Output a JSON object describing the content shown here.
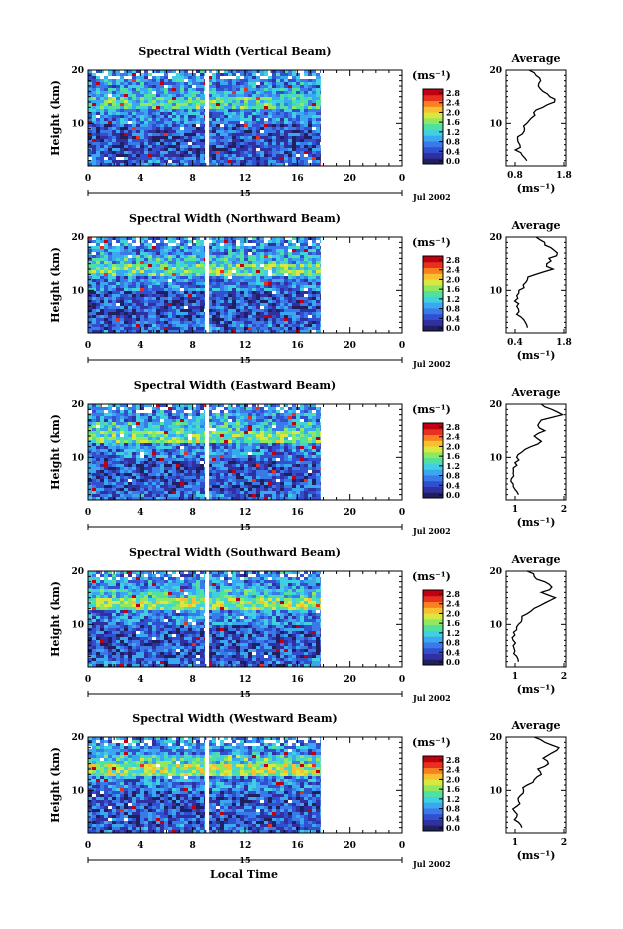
{
  "figure": {
    "x_axis_label": "Local Time",
    "date_label": "Jul 2002",
    "day_label": "15",
    "profile_title": "Average",
    "colorbar_unit": "(ms⁻¹)",
    "profile_xlabel": "(ms⁻¹)"
  },
  "colorbar": {
    "ticks": [
      "2.8",
      "2.4",
      "2.0",
      "1.6",
      "1.2",
      "0.8",
      "0.4",
      "0.0"
    ],
    "colors": [
      "#202060",
      "#3030a0",
      "#3050d0",
      "#3a7ae8",
      "#3aa8f0",
      "#40d0e0",
      "#50e0a0",
      "#90e860",
      "#d8e840",
      "#f8c030",
      "#f88020",
      "#e83020",
      "#c00010"
    ]
  },
  "chart_data": [
    {
      "type": "heatmap",
      "title": "Spectral Width (Vertical Beam)",
      "ylabel": "Height (km)",
      "xlim": [
        0,
        24
      ],
      "ylim": [
        2,
        20
      ],
      "x_ticks": [
        "0",
        "4",
        "8",
        "12",
        "16",
        "20",
        "0"
      ],
      "y_ticks": [
        "10",
        "20"
      ],
      "data_end_hour": 17.8,
      "gap_hour": 9.1,
      "profile": {
        "xlim": [
          0.5,
          1.8
        ],
        "x_ticks": [
          "0.8",
          "1.8"
        ],
        "height": [
          3,
          4,
          5,
          6,
          7,
          8,
          9,
          10,
          11,
          12,
          13,
          14,
          15,
          16,
          17,
          18,
          19,
          20
        ],
        "values": [
          0.95,
          0.85,
          0.7,
          0.8,
          0.75,
          0.85,
          0.9,
          0.95,
          1.05,
          1.1,
          1.3,
          1.55,
          1.45,
          1.3,
          1.2,
          1.25,
          1.15,
          1.0
        ]
      }
    },
    {
      "type": "heatmap",
      "title": "Spectral Width (Northward Beam)",
      "ylabel": "Height (km)",
      "xlim": [
        0,
        24
      ],
      "ylim": [
        2,
        20
      ],
      "x_ticks": [
        "0",
        "4",
        "8",
        "12",
        "16",
        "20",
        "0"
      ],
      "y_ticks": [
        "10",
        "20"
      ],
      "data_end_hour": 17.8,
      "gap_hour": 9.1,
      "profile": {
        "xlim": [
          0.4,
          1.8
        ],
        "x_ticks": [
          "0.4",
          "1.8"
        ],
        "height": [
          3,
          4,
          5,
          6,
          7,
          8,
          9,
          10,
          11,
          12,
          13,
          14,
          15,
          16,
          17,
          18,
          19,
          20
        ],
        "values": [
          0.9,
          0.85,
          0.75,
          0.7,
          0.65,
          0.6,
          0.65,
          0.7,
          0.8,
          0.9,
          1.1,
          1.5,
          1.35,
          1.4,
          1.6,
          1.45,
          1.3,
          1.1
        ]
      }
    },
    {
      "type": "heatmap",
      "title": "Spectral Width (Eastward Beam)",
      "ylabel": "Height (km)",
      "xlim": [
        0,
        24
      ],
      "ylim": [
        2,
        20
      ],
      "x_ticks": [
        "0",
        "4",
        "8",
        "12",
        "16",
        "20",
        "0"
      ],
      "y_ticks": [
        "10",
        "20"
      ],
      "data_end_hour": 17.8,
      "gap_hour": 9.1,
      "profile": {
        "xlim": [
          0.5,
          2.2
        ],
        "x_ticks": [
          "1",
          "2"
        ],
        "height": [
          3,
          4,
          5,
          6,
          7,
          8,
          9,
          10,
          11,
          12,
          13,
          14,
          15,
          16,
          17,
          18,
          19,
          20
        ],
        "values": [
          0.85,
          0.75,
          0.7,
          0.65,
          0.7,
          0.7,
          0.75,
          0.8,
          0.95,
          1.2,
          1.5,
          1.3,
          1.6,
          1.4,
          1.5,
          2.1,
          1.8,
          1.5
        ]
      }
    },
    {
      "type": "heatmap",
      "title": "Spectral Width (Southward Beam)",
      "ylabel": "Height (km)",
      "xlim": [
        0,
        24
      ],
      "ylim": [
        2,
        20
      ],
      "x_ticks": [
        "0",
        "4",
        "8",
        "12",
        "16",
        "20",
        "0"
      ],
      "y_ticks": [
        "10",
        "20"
      ],
      "data_end_hour": 17.8,
      "gap_hour": 9.1,
      "profile": {
        "xlim": [
          0.5,
          2.2
        ],
        "x_ticks": [
          "1",
          "2"
        ],
        "height": [
          3,
          4,
          5,
          6,
          7,
          8,
          9,
          10,
          11,
          12,
          13,
          14,
          15,
          16,
          17,
          18,
          19,
          20
        ],
        "values": [
          0.85,
          0.8,
          0.75,
          0.7,
          0.7,
          0.75,
          0.8,
          0.85,
          0.95,
          1.1,
          1.3,
          1.6,
          1.9,
          1.5,
          1.8,
          1.6,
          1.3,
          1.1
        ]
      }
    },
    {
      "type": "heatmap",
      "title": "Spectral Width (Westward Beam)",
      "ylabel": "Height (km)",
      "xlim": [
        0,
        24
      ],
      "ylim": [
        2,
        20
      ],
      "x_ticks": [
        "0",
        "4",
        "8",
        "12",
        "16",
        "20",
        "0"
      ],
      "y_ticks": [
        "10",
        "20"
      ],
      "data_end_hour": 17.8,
      "gap_hour": 9.1,
      "profile": {
        "xlim": [
          0.5,
          2.2
        ],
        "x_ticks": [
          "1",
          "2"
        ],
        "height": [
          3,
          4,
          5,
          6,
          7,
          8,
          9,
          10,
          11,
          12,
          13,
          14,
          15,
          16,
          17,
          18,
          19,
          20
        ],
        "values": [
          0.95,
          0.85,
          0.8,
          0.75,
          0.8,
          0.85,
          0.9,
          1.0,
          1.1,
          1.3,
          1.5,
          1.4,
          1.7,
          1.55,
          1.8,
          2.0,
          1.6,
          1.3
        ]
      }
    }
  ]
}
